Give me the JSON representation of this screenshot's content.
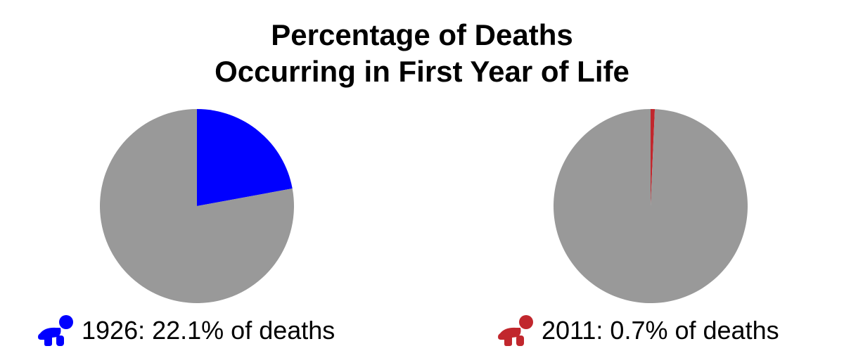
{
  "title": {
    "line1": "Percentage of Deaths",
    "line2": "Occurring in First Year of Life"
  },
  "colors": {
    "remainder": "#999999",
    "highlight_1926": "#0000ff",
    "highlight_2011": "#c1272d"
  },
  "chart_data": [
    {
      "type": "pie",
      "label": "1926: 22.1% of deaths",
      "slices": [
        {
          "value": 22.1,
          "color": "#0000ff"
        },
        {
          "value": 77.9,
          "color": "#999999"
        }
      ],
      "icon": "crawling-baby-icon"
    },
    {
      "type": "pie",
      "label": "2011: 0.7% of deaths",
      "slices": [
        {
          "value": 0.7,
          "color": "#c1272d"
        },
        {
          "value": 99.3,
          "color": "#999999"
        }
      ],
      "icon": "crawling-baby-icon"
    }
  ]
}
